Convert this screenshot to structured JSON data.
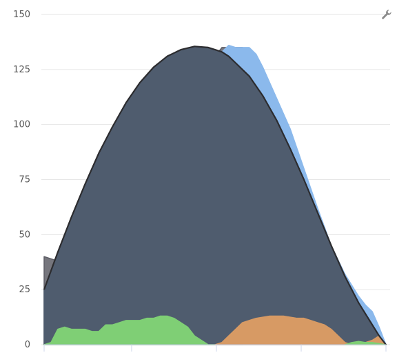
{
  "chart_data": {
    "type": "area",
    "title": "",
    "xlabel": "",
    "ylabel": "",
    "ylim": [
      0,
      150
    ],
    "xlim": [
      0,
      100
    ],
    "yticks": [
      0,
      25,
      50,
      75,
      100,
      125,
      150
    ],
    "ytick_labels": [
      "0",
      "25",
      "50",
      "75",
      "100",
      "125",
      "150"
    ],
    "xticks": [
      0,
      25.6,
      50.4,
      75.2,
      100
    ],
    "grid": "horizontal",
    "legend": "none",
    "series": [
      {
        "color": "#5e5e66",
        "fill_opacity": 0.85,
        "x": [
          0,
          4,
          8,
          12,
          16,
          20,
          24,
          28,
          32,
          36,
          40,
          44,
          48,
          52,
          54,
          56,
          58
        ],
        "values": [
          40,
          38,
          45,
          58,
          70,
          80,
          86,
          96,
          103,
          108,
          112,
          118,
          127,
          135,
          135,
          135,
          135
        ]
      },
      {
        "color": "#8bb9ec",
        "fill_opacity": 1,
        "x": [
          50,
          52,
          54,
          56,
          60,
          62,
          64,
          68,
          72,
          76,
          80,
          84,
          88,
          92,
          94,
          96,
          98,
          100
        ],
        "values": [
          128,
          133,
          136,
          135,
          135,
          132,
          126,
          112,
          98,
          80,
          62,
          45,
          32,
          22,
          18,
          15,
          8,
          0
        ]
      },
      {
        "color": "#4f5c6e",
        "fill_opacity": 1,
        "x": [
          0,
          4,
          8,
          12,
          16,
          20,
          24,
          28,
          32,
          36,
          40,
          44,
          48,
          50,
          52,
          54,
          56,
          60,
          64,
          68,
          72,
          76,
          80,
          84,
          88,
          92,
          96,
          98,
          100
        ],
        "values": [
          25,
          42,
          58,
          73,
          87,
          99,
          110,
          119,
          126,
          131,
          134,
          135.5,
          135,
          134,
          133,
          131,
          128,
          122,
          113,
          102,
          89,
          75,
          60,
          45,
          31,
          19,
          9,
          4,
          0
        ]
      },
      {
        "color": "#7fcf75",
        "fill_opacity": 1,
        "x": [
          0,
          2,
          4,
          6,
          8,
          10,
          12,
          14,
          16,
          18,
          20,
          22,
          24,
          26,
          28,
          30,
          32,
          34,
          36,
          38,
          40,
          42,
          44,
          46,
          48,
          50
        ],
        "values": [
          0,
          1,
          7,
          8,
          7,
          7,
          7,
          6,
          6,
          9,
          9,
          10,
          11,
          11,
          11,
          12,
          12,
          13,
          13,
          12,
          10,
          8,
          4,
          2,
          0,
          0
        ]
      },
      {
        "color": "#d79a64",
        "fill_opacity": 1,
        "x": [
          50,
          52,
          54,
          56,
          58,
          60,
          62,
          64,
          66,
          68,
          70,
          72,
          74,
          76,
          78,
          80,
          82,
          84,
          86,
          88,
          90,
          92,
          94,
          96,
          98,
          100
        ],
        "values": [
          0,
          1,
          4,
          7,
          10,
          11,
          12,
          12.5,
          13,
          13,
          13,
          12.5,
          12,
          12,
          11,
          10,
          9,
          7,
          4,
          1,
          0,
          0,
          1,
          2,
          4,
          0
        ]
      },
      {
        "color": "#7fcf75",
        "fill_opacity": 1,
        "x": [
          88,
          90,
          92,
          94,
          96,
          98,
          100
        ],
        "values": [
          0,
          1,
          1.5,
          1,
          1,
          0.5,
          0
        ]
      }
    ],
    "envelope": {
      "color": "#2c2c2f",
      "x": [
        0,
        4,
        8,
        12,
        16,
        20,
        24,
        28,
        32,
        36,
        40,
        44,
        48,
        50,
        52,
        54,
        56,
        60,
        64,
        68,
        72,
        76,
        80,
        84,
        88,
        92,
        96,
        98,
        100
      ],
      "values": [
        25,
        42,
        58,
        73,
        87,
        99,
        110,
        119,
        126,
        131,
        134,
        135.5,
        135,
        134,
        133,
        131,
        128,
        122,
        113,
        102,
        89,
        75,
        60,
        45,
        31,
        19,
        9,
        4,
        0
      ]
    }
  },
  "tool": {
    "icon": "wrench-icon"
  }
}
